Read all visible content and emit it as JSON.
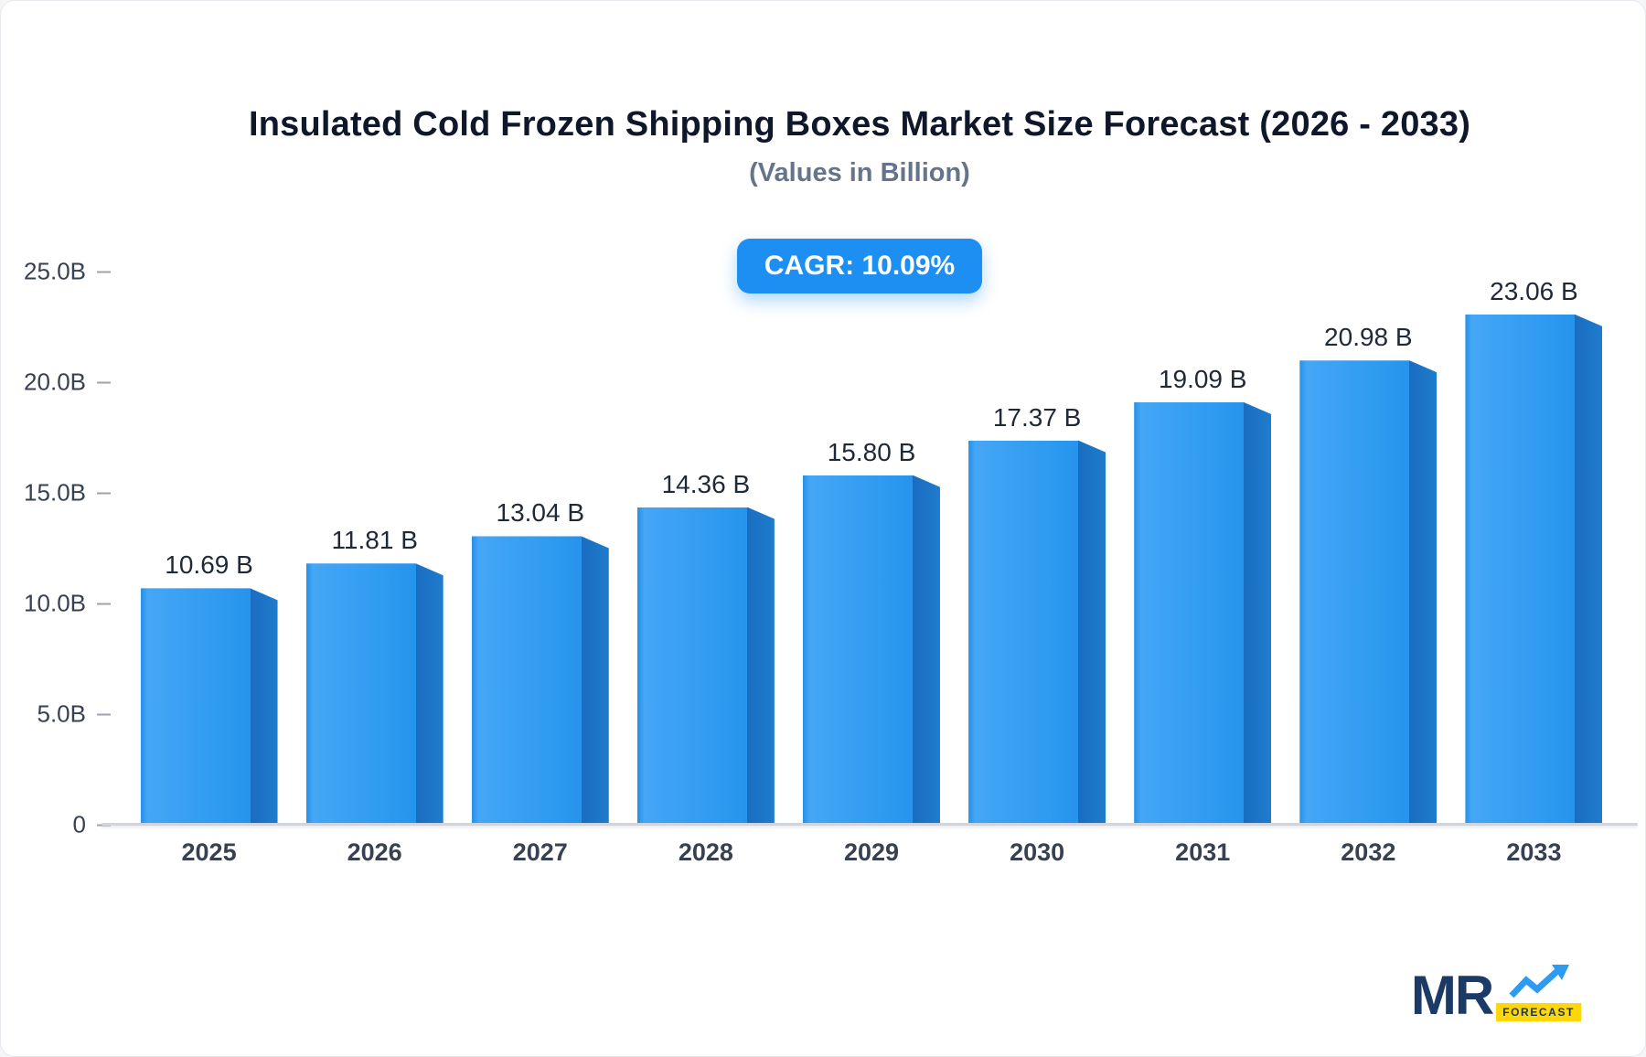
{
  "title": "Insulated Cold Frozen Shipping Boxes Market Size Forecast (2026 - 2033)",
  "subtitle": "(Values in Billion)",
  "cagr_label": "CAGR: 10.09%",
  "chart_data": {
    "type": "bar",
    "title": "Insulated Cold Frozen Shipping Boxes Market Size Forecast (2026 - 2033)",
    "subtitle": "(Values in Billion)",
    "categories": [
      "2025",
      "2026",
      "2027",
      "2028",
      "2029",
      "2030",
      "2031",
      "2032",
      "2033"
    ],
    "values": [
      10.69,
      11.81,
      13.04,
      14.36,
      15.8,
      17.37,
      19.09,
      20.98,
      23.06
    ],
    "value_labels": [
      "10.69 B",
      "11.81 B",
      "13.04 B",
      "14.36 B",
      "15.80 B",
      "17.37 B",
      "19.09 B",
      "20.98 B",
      "23.06 B"
    ],
    "xlabel": "",
    "ylabel": "",
    "ylim": [
      0,
      25
    ],
    "y_ticks": [
      "25.0B",
      "20.0B",
      "15.0B",
      "10.0B",
      "5.0B",
      "0"
    ],
    "grid": false,
    "legend": false,
    "bar_color": "#2196f3",
    "bar_side_color": "#1a6dc0",
    "cagr": "CAGR: 10.09%"
  },
  "logo": {
    "text": "MR",
    "sub": "FORECAST",
    "arrow_color": "#2e9bf3",
    "banner_color": "#ffd60a"
  }
}
